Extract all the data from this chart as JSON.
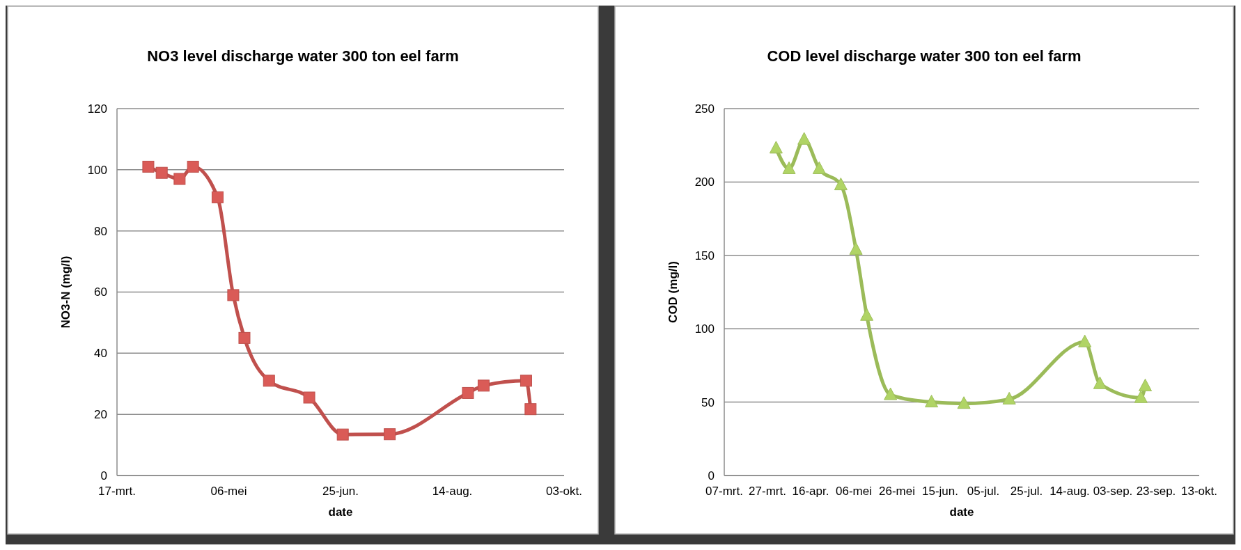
{
  "chart_data": [
    {
      "type": "line",
      "title": "NO3 level discharge water 300 ton eel farm",
      "xlabel": "date",
      "ylabel": "NO3-N (mg/l)",
      "x": [
        "--03-31",
        "--04-06",
        "--04-14",
        "--04-20",
        "--05-01",
        "--05-08",
        "--05-13",
        "--05-24",
        "--06-11",
        "--06-26",
        "--07-17",
        "--08-21",
        "--08-28",
        "--09-16",
        "--09-18"
      ],
      "series": [
        {
          "color": "#c0504d",
          "values": [
            101,
            99,
            97,
            101,
            91,
            59,
            45,
            31,
            25.5,
            13.4,
            13.5,
            27,
            29.4,
            31,
            21.7
          ]
        }
      ],
      "xlim": [
        "--03-17",
        "--10-03"
      ],
      "xticks": [
        {
          "value": "--03-17",
          "label": "17-mrt."
        },
        {
          "value": "--05-06",
          "label": "06-mei"
        },
        {
          "value": "--06-25",
          "label": "25-jun."
        },
        {
          "value": "--08-14",
          "label": "14-aug."
        },
        {
          "value": "--10-03",
          "label": "03-okt."
        }
      ],
      "ylim": [
        0,
        120
      ],
      "yticks": [
        0,
        20,
        40,
        60,
        80,
        100,
        120
      ],
      "grid": "y",
      "marker": "square",
      "line_style": "solid"
    },
    {
      "type": "line",
      "title": "COD level discharge water 300 ton eel farm",
      "xlabel": "date",
      "ylabel": "COD (mg/l)",
      "x": [
        "--03-31",
        "--04-06",
        "--04-13",
        "--04-20",
        "--04-30",
        "--05-07",
        "--05-12",
        "--05-23",
        "--06-11",
        "--06-26",
        "--07-17",
        "--08-21",
        "--08-28",
        "--09-16",
        "--09-18"
      ],
      "series": [
        {
          "color": "#9bbb59",
          "values": [
            223,
            209,
            229,
            209,
            198,
            154,
            109,
            55,
            50,
            49,
            52,
            91,
            62.5,
            53,
            61
          ]
        }
      ],
      "xlim": [
        "--03-07",
        "--10-13"
      ],
      "xticks": [
        {
          "value": "--03-07",
          "label": "07-mrt."
        },
        {
          "value": "--03-27",
          "label": "27-mrt."
        },
        {
          "value": "--04-16",
          "label": "16-apr."
        },
        {
          "value": "--05-06",
          "label": "06-mei"
        },
        {
          "value": "--05-26",
          "label": "26-mei"
        },
        {
          "value": "--06-15",
          "label": "15-jun."
        },
        {
          "value": "--07-05",
          "label": "05-jul."
        },
        {
          "value": "--07-25",
          "label": "25-jul."
        },
        {
          "value": "--08-14",
          "label": "14-aug."
        },
        {
          "value": "--09-03",
          "label": "03-sep."
        },
        {
          "value": "--09-23",
          "label": "23-sep."
        },
        {
          "value": "--10-13",
          "label": "13-okt."
        }
      ],
      "ylim": [
        0,
        250
      ],
      "yticks": [
        0,
        50,
        100,
        150,
        200,
        250
      ],
      "grid": "y",
      "marker": "triangle",
      "line_style": "solid"
    }
  ]
}
